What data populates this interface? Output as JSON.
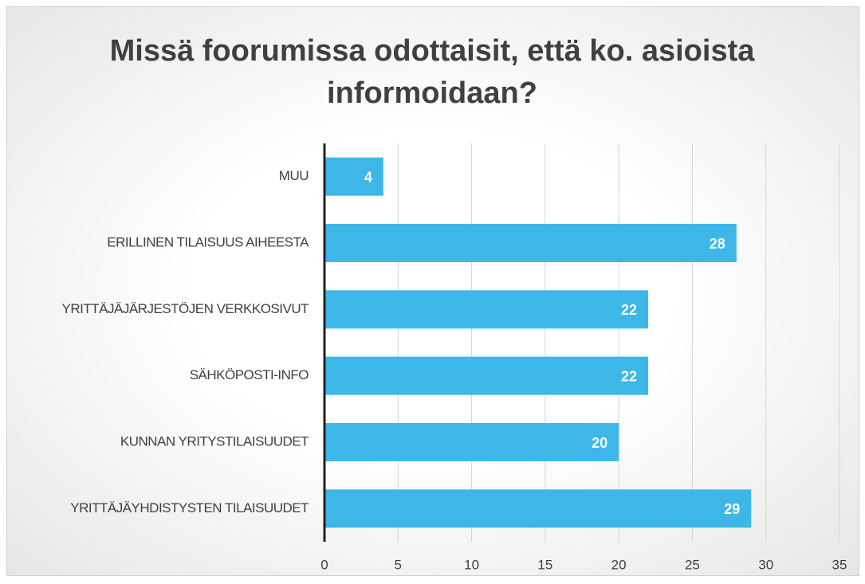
{
  "chart_data": {
    "type": "hbar",
    "title": "Missä foorumissa odottaisit, että ko. asioista informoidaan?",
    "categories": [
      "MUU",
      "ERILLINEN TILAISUUS AIHEESTA",
      "YRITTÄJÄJÄRJESTÖJEN VERKKOSIVUT",
      "SÄHKÖPOSTI-INFO",
      "KUNNAN YRITYSTILAISUUDET",
      "YRITTÄJÄYHDISTYSTEN TILAISUUDET"
    ],
    "values": [
      4,
      28,
      22,
      22,
      20,
      29
    ],
    "color": "#3db7e8",
    "xlim": [
      0,
      35
    ],
    "xticks": [
      0,
      5,
      10,
      15,
      20,
      25,
      30,
      35
    ],
    "grid": true
  }
}
